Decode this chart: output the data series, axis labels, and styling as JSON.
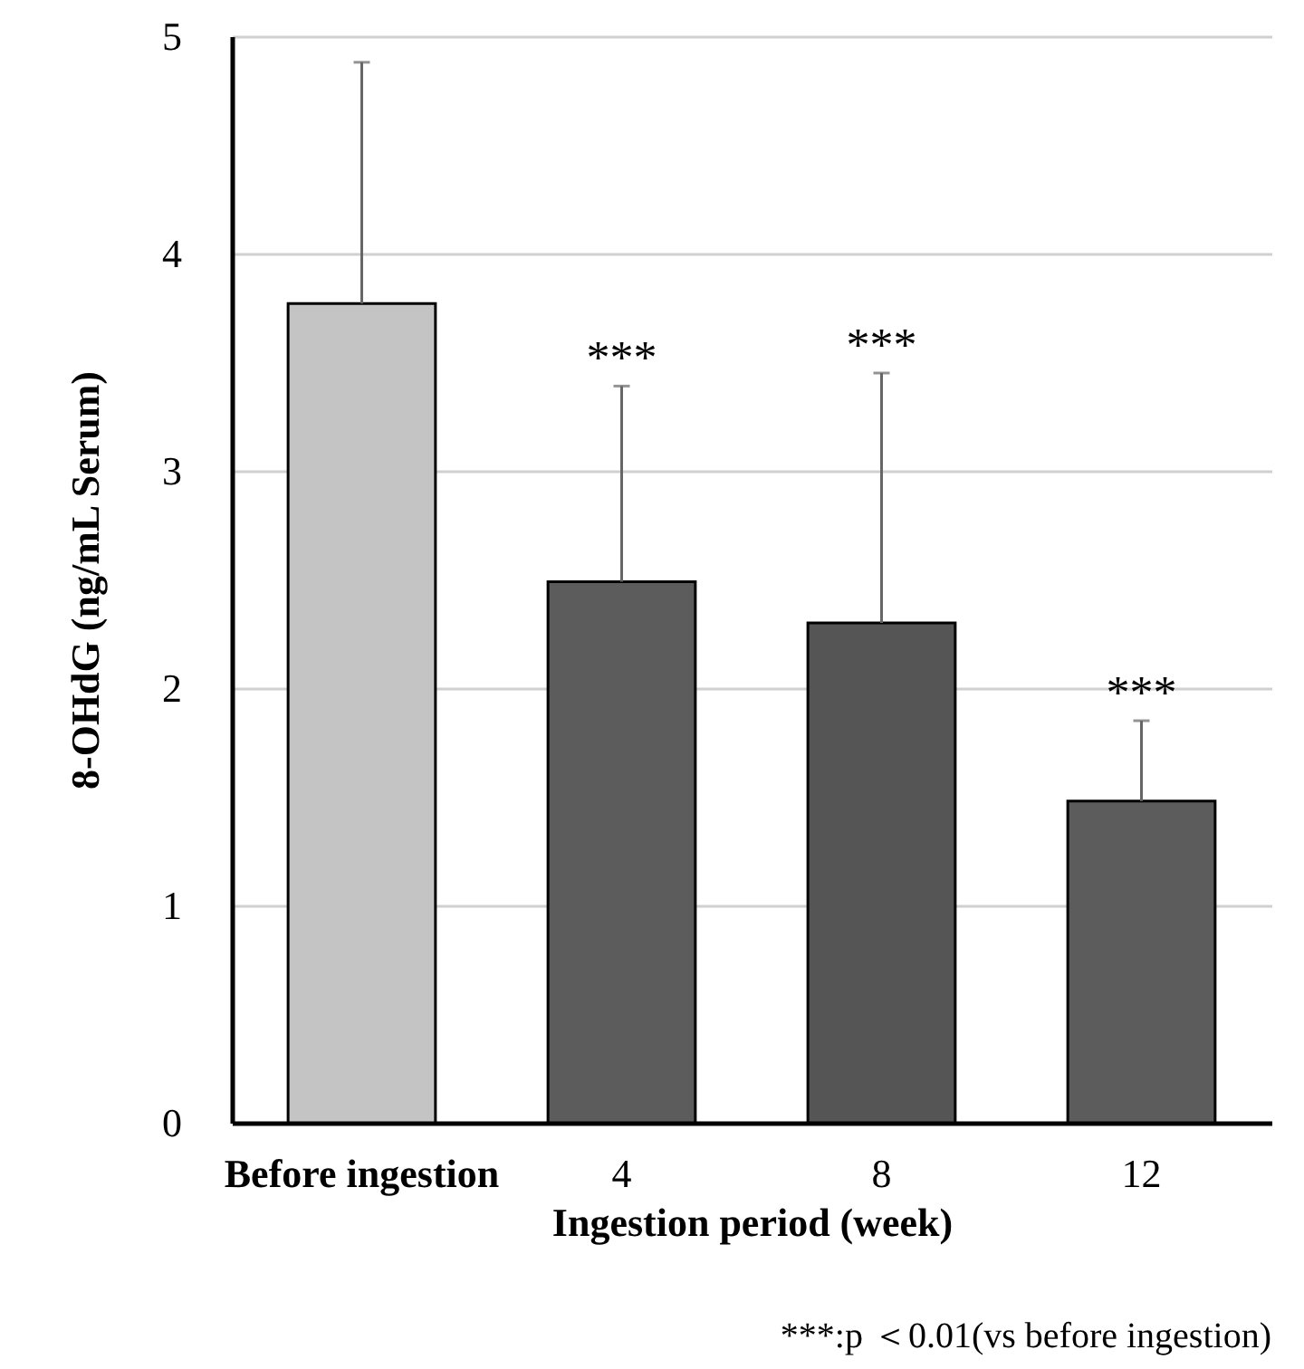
{
  "chart_data": {
    "type": "bar",
    "xlabel": "Ingestion period (week)",
    "ylabel": "8-OHdG (ng/mL Serum)",
    "categories": [
      "Before ingestion",
      "4",
      "8",
      "12"
    ],
    "values": [
      3.77,
      2.49,
      2.3,
      1.48
    ],
    "errors": [
      1.11,
      0.9,
      1.15,
      0.37
    ],
    "colors": [
      "#c4c4c4",
      "#5c5c5c",
      "#555555",
      "#5c5c5c"
    ],
    "ylim": [
      0,
      5
    ],
    "yticks": [
      0,
      1,
      2,
      3,
      4,
      5
    ],
    "grid": "y",
    "annotations": [
      {
        "text": "***",
        "x": "4",
        "y": 3.39
      },
      {
        "text": "***",
        "x": "8",
        "y": 3.45
      },
      {
        "text": "***",
        "x": "12",
        "y": 1.85
      },
      "***:p ＜0.01(vs before ingestion)"
    ]
  }
}
